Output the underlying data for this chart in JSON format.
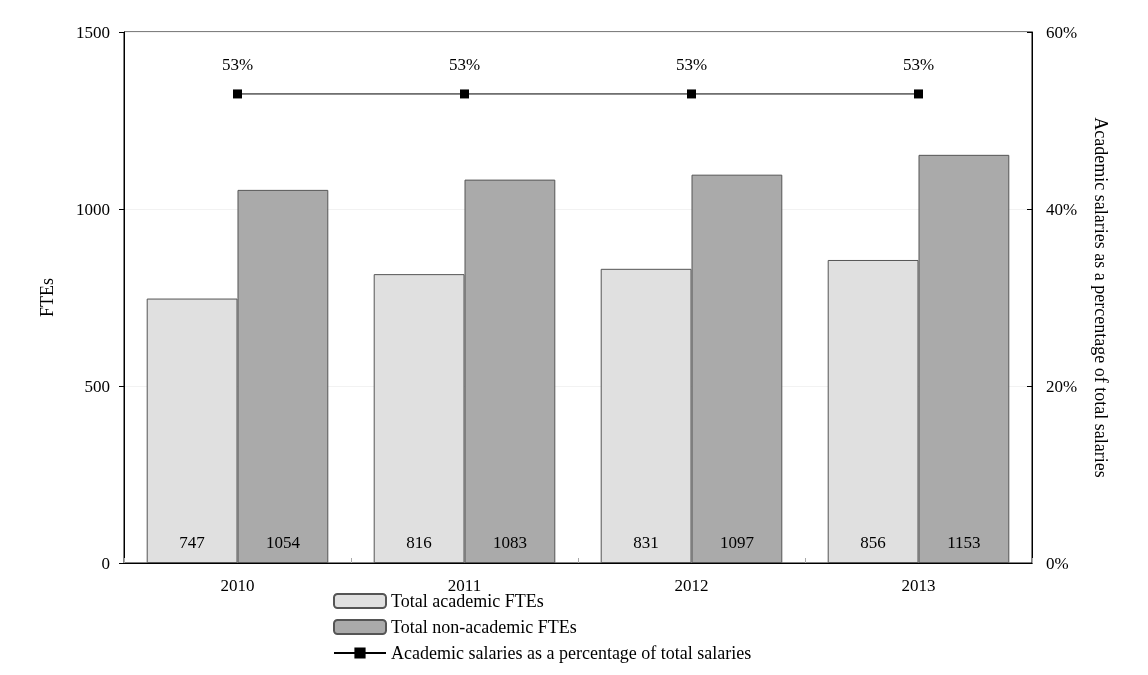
{
  "chart_data": {
    "type": "bar",
    "ylabel": "FTEs",
    "y2label": "Academic salaries as a percentage of total salaries",
    "categories": [
      "2010",
      "2011",
      "2012",
      "2013"
    ],
    "series": [
      {
        "name": "Total academic FTEs",
        "color": "#e0e0e0",
        "values": [
          747,
          816,
          831,
          856
        ]
      },
      {
        "name": "Total non-academic FTEs",
        "color": "#aaaaaa",
        "values": [
          1054,
          1083,
          1097,
          1153
        ]
      },
      {
        "name": "Academic salaries as a percentage of total salaries",
        "type": "line",
        "axis": "y2",
        "color": "#000000",
        "marker": "square",
        "values": [
          53,
          53,
          53,
          53
        ],
        "value_labels": [
          "53%",
          "53%",
          "53%",
          "53%"
        ]
      }
    ],
    "ylim": [
      0,
      1500
    ],
    "yticks": [
      0,
      500,
      1000,
      1500
    ],
    "y2lim": [
      0,
      60
    ],
    "y2ticks": [
      {
        "value": 0,
        "label": "0%"
      },
      {
        "value": 20,
        "label": "20%"
      },
      {
        "value": 40,
        "label": "40%"
      },
      {
        "value": 60,
        "label": "60%"
      }
    ],
    "data_labels": true,
    "grid": "y",
    "legend": "bottom"
  }
}
